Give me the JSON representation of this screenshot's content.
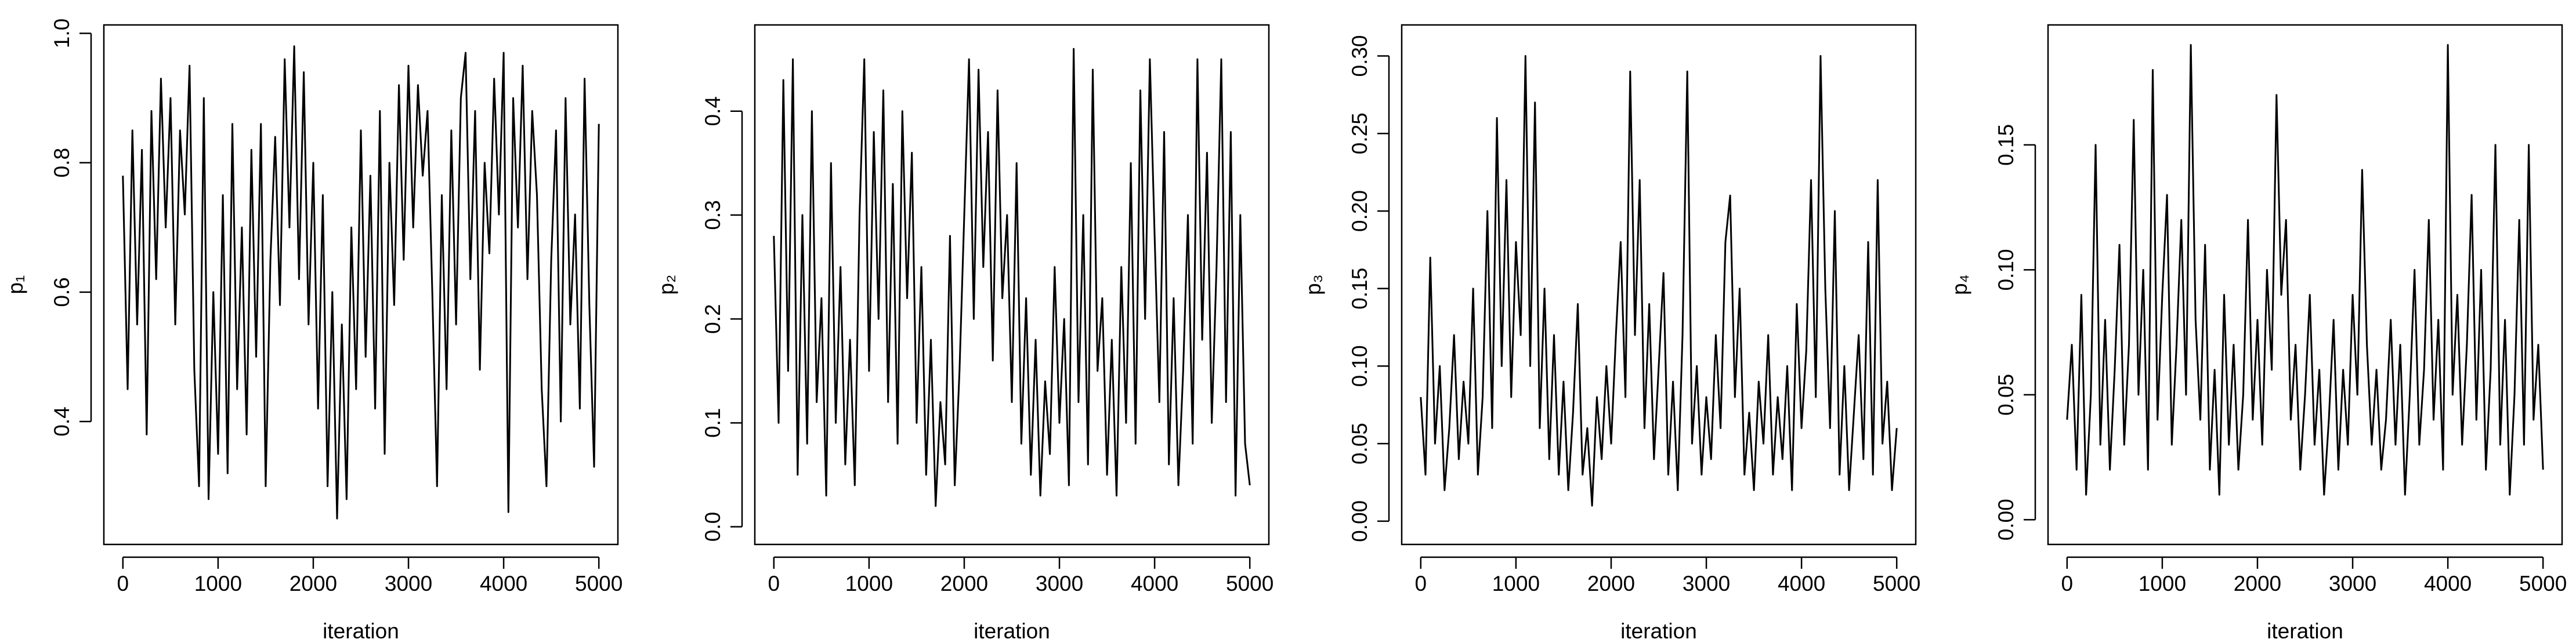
{
  "chart_data": [
    {
      "type": "line",
      "xlabel": "iteration",
      "ylabel": "p₁",
      "color": "#000000",
      "x": [
        0,
        50,
        100,
        150,
        200,
        250,
        300,
        350,
        400,
        450,
        500,
        550,
        600,
        650,
        700,
        750,
        800,
        850,
        900,
        950,
        1000,
        1050,
        1100,
        1150,
        1200,
        1250,
        1300,
        1350,
        1400,
        1450,
        1500,
        1550,
        1600,
        1650,
        1700,
        1750,
        1800,
        1850,
        1900,
        1950,
        2000,
        2050,
        2100,
        2150,
        2200,
        2250,
        2300,
        2350,
        2400,
        2450,
        2500,
        2550,
        2600,
        2650,
        2700,
        2750,
        2800,
        2850,
        2900,
        2950,
        3000,
        3050,
        3100,
        3150,
        3200,
        3250,
        3300,
        3350,
        3400,
        3450,
        3500,
        3550,
        3600,
        3650,
        3700,
        3750,
        3800,
        3850,
        3900,
        3950,
        4000,
        4050,
        4100,
        4150,
        4200,
        4250,
        4300,
        4350,
        4400,
        4450,
        4500,
        4550,
        4600,
        4650,
        4700,
        4750,
        4800,
        4850,
        4900,
        4950,
        5000
      ],
      "values": [
        0.78,
        0.45,
        0.85,
        0.55,
        0.82,
        0.38,
        0.88,
        0.62,
        0.93,
        0.7,
        0.9,
        0.55,
        0.85,
        0.72,
        0.95,
        0.48,
        0.3,
        0.9,
        0.28,
        0.6,
        0.35,
        0.75,
        0.32,
        0.86,
        0.45,
        0.7,
        0.38,
        0.82,
        0.5,
        0.86,
        0.3,
        0.65,
        0.84,
        0.58,
        0.96,
        0.7,
        0.98,
        0.62,
        0.94,
        0.55,
        0.8,
        0.42,
        0.75,
        0.3,
        0.6,
        0.25,
        0.55,
        0.28,
        0.7,
        0.45,
        0.85,
        0.5,
        0.78,
        0.42,
        0.88,
        0.35,
        0.8,
        0.58,
        0.92,
        0.65,
        0.95,
        0.7,
        0.92,
        0.78,
        0.88,
        0.6,
        0.3,
        0.75,
        0.45,
        0.85,
        0.55,
        0.9,
        0.97,
        0.62,
        0.88,
        0.48,
        0.8,
        0.66,
        0.93,
        0.72,
        0.97,
        0.26,
        0.9,
        0.7,
        0.95,
        0.62,
        0.88,
        0.75,
        0.45,
        0.3,
        0.65,
        0.85,
        0.4,
        0.9,
        0.55,
        0.72,
        0.42,
        0.93,
        0.58,
        0.33,
        0.86
      ],
      "xlim": [
        -200,
        5200
      ],
      "xticks": [
        0,
        1000,
        2000,
        3000,
        4000,
        5000
      ],
      "ylim": [
        0.21,
        1.013
      ],
      "yticks": [
        0.4,
        0.6,
        0.8,
        {
          "value": 1,
          "label": "1.0"
        }
      ]
    },
    {
      "type": "line",
      "xlabel": "iteration",
      "ylabel": "p₂",
      "color": "#000000",
      "x": [
        0,
        50,
        100,
        150,
        200,
        250,
        300,
        350,
        400,
        450,
        500,
        550,
        600,
        650,
        700,
        750,
        800,
        850,
        900,
        950,
        1000,
        1050,
        1100,
        1150,
        1200,
        1250,
        1300,
        1350,
        1400,
        1450,
        1500,
        1550,
        1600,
        1650,
        1700,
        1750,
        1800,
        1850,
        1900,
        1950,
        2000,
        2050,
        2100,
        2150,
        2200,
        2250,
        2300,
        2350,
        2400,
        2450,
        2500,
        2550,
        2600,
        2650,
        2700,
        2750,
        2800,
        2850,
        2900,
        2950,
        3000,
        3050,
        3100,
        3150,
        3200,
        3250,
        3300,
        3350,
        3400,
        3450,
        3500,
        3550,
        3600,
        3650,
        3700,
        3750,
        3800,
        3850,
        3900,
        3950,
        4000,
        4050,
        4100,
        4150,
        4200,
        4250,
        4300,
        4350,
        4400,
        4450,
        4500,
        4550,
        4600,
        4650,
        4700,
        4750,
        4800,
        4850,
        4900,
        4950,
        5000
      ],
      "values": [
        0.28,
        0.1,
        0.43,
        0.15,
        0.45,
        0.05,
        0.3,
        0.08,
        0.4,
        0.12,
        0.22,
        0.03,
        0.35,
        0.1,
        0.25,
        0.06,
        0.18,
        0.04,
        0.3,
        0.45,
        0.15,
        0.38,
        0.2,
        0.42,
        0.12,
        0.33,
        0.08,
        0.4,
        0.22,
        0.36,
        0.1,
        0.25,
        0.05,
        0.18,
        0.02,
        0.12,
        0.06,
        0.28,
        0.04,
        0.15,
        0.3,
        0.45,
        0.2,
        0.44,
        0.25,
        0.38,
        0.16,
        0.42,
        0.22,
        0.3,
        0.12,
        0.35,
        0.08,
        0.22,
        0.05,
        0.18,
        0.03,
        0.14,
        0.07,
        0.25,
        0.1,
        0.2,
        0.04,
        0.46,
        0.12,
        0.3,
        0.06,
        0.44,
        0.15,
        0.22,
        0.05,
        0.18,
        0.03,
        0.25,
        0.1,
        0.35,
        0.08,
        0.42,
        0.2,
        0.45,
        0.28,
        0.12,
        0.38,
        0.06,
        0.22,
        0.04,
        0.15,
        0.3,
        0.08,
        0.45,
        0.18,
        0.36,
        0.1,
        0.25,
        0.45,
        0.12,
        0.38,
        0.03,
        0.3,
        0.08,
        0.04
      ],
      "xlim": [
        -200,
        5200
      ],
      "xticks": [
        0,
        1000,
        2000,
        3000,
        4000,
        5000
      ],
      "ylim": [
        -0.017,
        0.483
      ],
      "yticks": [
        {
          "value": 0,
          "label": "0.0"
        },
        0.1,
        0.2,
        0.3,
        0.4
      ]
    },
    {
      "type": "line",
      "xlabel": "iteration",
      "ylabel": "p₃",
      "color": "#000000",
      "x": [
        0,
        50,
        100,
        150,
        200,
        250,
        300,
        350,
        400,
        450,
        500,
        550,
        600,
        650,
        700,
        750,
        800,
        850,
        900,
        950,
        1000,
        1050,
        1100,
        1150,
        1200,
        1250,
        1300,
        1350,
        1400,
        1450,
        1500,
        1550,
        1600,
        1650,
        1700,
        1750,
        1800,
        1850,
        1900,
        1950,
        2000,
        2050,
        2100,
        2150,
        2200,
        2250,
        2300,
        2350,
        2400,
        2450,
        2500,
        2550,
        2600,
        2650,
        2700,
        2750,
        2800,
        2850,
        2900,
        2950,
        3000,
        3050,
        3100,
        3150,
        3200,
        3250,
        3300,
        3350,
        3400,
        3450,
        3500,
        3550,
        3600,
        3650,
        3700,
        3750,
        3800,
        3850,
        3900,
        3950,
        4000,
        4050,
        4100,
        4150,
        4200,
        4250,
        4300,
        4350,
        4400,
        4450,
        4500,
        4550,
        4600,
        4650,
        4700,
        4750,
        4800,
        4850,
        4900,
        4950,
        5000
      ],
      "values": [
        0.08,
        0.03,
        0.17,
        0.05,
        0.1,
        0.02,
        0.06,
        0.12,
        0.04,
        0.09,
        0.05,
        0.15,
        0.03,
        0.08,
        0.2,
        0.06,
        0.26,
        0.1,
        0.22,
        0.08,
        0.18,
        0.12,
        0.3,
        0.1,
        0.27,
        0.06,
        0.15,
        0.04,
        0.12,
        0.03,
        0.09,
        0.02,
        0.07,
        0.14,
        0.03,
        0.06,
        0.01,
        0.08,
        0.04,
        0.1,
        0.05,
        0.12,
        0.18,
        0.08,
        0.29,
        0.12,
        0.22,
        0.06,
        0.14,
        0.04,
        0.1,
        0.16,
        0.03,
        0.09,
        0.02,
        0.12,
        0.29,
        0.05,
        0.1,
        0.03,
        0.08,
        0.04,
        0.12,
        0.06,
        0.18,
        0.21,
        0.08,
        0.15,
        0.03,
        0.07,
        0.02,
        0.09,
        0.05,
        0.12,
        0.03,
        0.08,
        0.04,
        0.1,
        0.02,
        0.14,
        0.06,
        0.11,
        0.22,
        0.08,
        0.3,
        0.15,
        0.06,
        0.2,
        0.03,
        0.1,
        0.02,
        0.07,
        0.12,
        0.04,
        0.18,
        0.03,
        0.22,
        0.05,
        0.09,
        0.02,
        0.06
      ],
      "xlim": [
        -200,
        5200
      ],
      "xticks": [
        0,
        1000,
        2000,
        3000,
        4000,
        5000
      ],
      "ylim": [
        -0.015,
        0.32
      ],
      "yticks": [
        {
          "value": 0,
          "label": "0.00"
        },
        0.05,
        {
          "value": 0.1,
          "label": "0.10"
        },
        0.15,
        {
          "value": 0.2,
          "label": "0.20"
        },
        0.25,
        {
          "value": 0.3,
          "label": "0.30"
        }
      ]
    },
    {
      "type": "line",
      "xlabel": "iteration",
      "ylabel": "p₄",
      "color": "#000000",
      "x": [
        0,
        50,
        100,
        150,
        200,
        250,
        300,
        350,
        400,
        450,
        500,
        550,
        600,
        650,
        700,
        750,
        800,
        850,
        900,
        950,
        1000,
        1050,
        1100,
        1150,
        1200,
        1250,
        1300,
        1350,
        1400,
        1450,
        1500,
        1550,
        1600,
        1650,
        1700,
        1750,
        1800,
        1850,
        1900,
        1950,
        2000,
        2050,
        2100,
        2150,
        2200,
        2250,
        2300,
        2350,
        2400,
        2450,
        2500,
        2550,
        2600,
        2650,
        2700,
        2750,
        2800,
        2850,
        2900,
        2950,
        3000,
        3050,
        3100,
        3150,
        3200,
        3250,
        3300,
        3350,
        3400,
        3450,
        3500,
        3550,
        3600,
        3650,
        3700,
        3750,
        3800,
        3850,
        3900,
        3950,
        4000,
        4050,
        4100,
        4150,
        4200,
        4250,
        4300,
        4350,
        4400,
        4450,
        4500,
        4550,
        4600,
        4650,
        4700,
        4750,
        4800,
        4850,
        4900,
        4950,
        5000
      ],
      "values": [
        0.04,
        0.07,
        0.02,
        0.09,
        0.01,
        0.05,
        0.15,
        0.03,
        0.08,
        0.02,
        0.06,
        0.11,
        0.03,
        0.07,
        0.16,
        0.05,
        0.1,
        0.02,
        0.18,
        0.04,
        0.09,
        0.13,
        0.03,
        0.07,
        0.12,
        0.05,
        0.19,
        0.08,
        0.04,
        0.11,
        0.02,
        0.06,
        0.01,
        0.09,
        0.03,
        0.07,
        0.02,
        0.05,
        0.12,
        0.04,
        0.08,
        0.03,
        0.1,
        0.06,
        0.17,
        0.09,
        0.12,
        0.04,
        0.07,
        0.02,
        0.05,
        0.09,
        0.03,
        0.06,
        0.01,
        0.04,
        0.08,
        0.02,
        0.06,
        0.03,
        0.09,
        0.05,
        0.14,
        0.07,
        0.03,
        0.06,
        0.02,
        0.04,
        0.08,
        0.03,
        0.07,
        0.01,
        0.05,
        0.1,
        0.03,
        0.06,
        0.12,
        0.04,
        0.08,
        0.02,
        0.19,
        0.05,
        0.09,
        0.03,
        0.07,
        0.13,
        0.04,
        0.1,
        0.02,
        0.06,
        0.15,
        0.03,
        0.08,
        0.01,
        0.05,
        0.12,
        0.03,
        0.15,
        0.04,
        0.07,
        0.02
      ],
      "xlim": [
        -200,
        5200
      ],
      "xticks": [
        0,
        1000,
        2000,
        3000,
        4000,
        5000
      ],
      "ylim": [
        -0.0099,
        0.198
      ],
      "yticks": [
        {
          "value": 0,
          "label": "0.00"
        },
        0.05,
        {
          "value": 0.1,
          "label": "0.10"
        },
        0.15
      ]
    }
  ]
}
